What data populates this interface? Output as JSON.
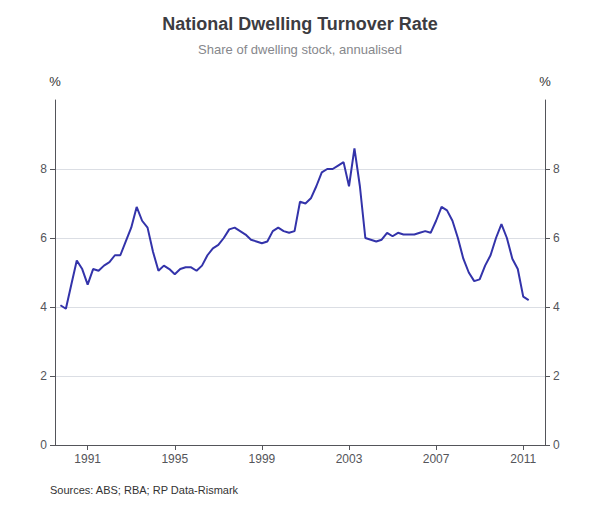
{
  "chart_data": {
    "type": "line",
    "title": "National Dwelling Turnover Rate",
    "subtitle": "Share of dwelling stock, annualised",
    "source": "Sources: ABS; RBA; RP Data-Rismark",
    "ylabel": "%",
    "y2label": "%",
    "color": "#3333AA",
    "grid": true,
    "xlim": [
      1989.5,
      2012.0
    ],
    "xticks": [
      1991,
      1995,
      1999,
      2003,
      2007,
      2011
    ],
    "ylim": [
      0,
      10
    ],
    "yticks": [
      0,
      2,
      4,
      6,
      8
    ],
    "y2lim": [
      0,
      10
    ],
    "y2ticks": [
      0,
      2,
      4,
      6,
      8
    ],
    "x": [
      1989.75,
      1990.0,
      1990.25,
      1990.5,
      1990.75,
      1991.0,
      1991.25,
      1991.5,
      1991.75,
      1992.0,
      1992.25,
      1992.5,
      1992.75,
      1993.0,
      1993.25,
      1993.5,
      1993.75,
      1994.0,
      1994.25,
      1994.5,
      1994.75,
      1995.0,
      1995.25,
      1995.5,
      1995.75,
      1996.0,
      1996.25,
      1996.5,
      1996.75,
      1997.0,
      1997.25,
      1997.5,
      1997.75,
      1998.0,
      1998.25,
      1998.5,
      1998.75,
      1999.0,
      1999.25,
      1999.5,
      1999.75,
      2000.0,
      2000.25,
      2000.5,
      2000.75,
      2001.0,
      2001.25,
      2001.5,
      2001.75,
      2002.0,
      2002.25,
      2002.5,
      2002.75,
      2003.0,
      2003.25,
      2003.5,
      2003.75,
      2004.0,
      2004.25,
      2004.5,
      2004.75,
      2005.0,
      2005.25,
      2005.5,
      2005.75,
      2006.0,
      2006.25,
      2006.5,
      2006.75,
      2007.0,
      2007.25,
      2007.5,
      2007.75,
      2008.0,
      2008.25,
      2008.5,
      2008.75,
      2009.0,
      2009.25,
      2009.5,
      2009.75,
      2010.0,
      2010.25,
      2010.5,
      2010.75,
      2011.0,
      2011.25
    ],
    "values": [
      4.05,
      3.95,
      4.65,
      5.35,
      5.1,
      4.65,
      5.1,
      5.05,
      5.2,
      5.3,
      5.5,
      5.5,
      5.9,
      6.3,
      6.9,
      6.5,
      6.3,
      5.6,
      5.05,
      5.2,
      5.1,
      4.95,
      5.1,
      5.15,
      5.15,
      5.05,
      5.2,
      5.5,
      5.7,
      5.8,
      6.0,
      6.25,
      6.3,
      6.2,
      6.1,
      5.95,
      5.9,
      5.85,
      5.9,
      6.2,
      6.3,
      6.2,
      6.15,
      6.2,
      7.05,
      7.0,
      7.15,
      7.5,
      7.9,
      8.0,
      8.0,
      8.1,
      8.2,
      7.5,
      8.6,
      7.5,
      6.0,
      5.95,
      5.9,
      5.95,
      6.15,
      6.05,
      6.15,
      6.1,
      6.1,
      6.1,
      6.15,
      6.2,
      6.15,
      6.5,
      6.9,
      6.8,
      6.5,
      6.0,
      5.4,
      5.0,
      4.75,
      4.8,
      5.2,
      5.5,
      6.0,
      6.4,
      6.0,
      5.4,
      5.1,
      4.3,
      4.2
    ]
  }
}
